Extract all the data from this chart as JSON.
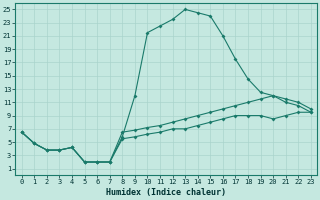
{
  "title": "",
  "xlabel": "Humidex (Indice chaleur)",
  "bg_color": "#c5e8e0",
  "grid_color": "#aad4cc",
  "line_color": "#1a7a6a",
  "xlim": [
    -0.5,
    23.5
  ],
  "ylim": [
    0,
    26
  ],
  "xticks": [
    0,
    1,
    2,
    3,
    4,
    5,
    6,
    7,
    8,
    9,
    10,
    11,
    12,
    13,
    14,
    15,
    16,
    17,
    18,
    19,
    20,
    21,
    22,
    23
  ],
  "yticks": [
    1,
    3,
    5,
    7,
    9,
    11,
    13,
    15,
    17,
    19,
    21,
    23,
    25
  ],
  "line1_x": [
    0,
    1,
    2,
    3,
    4,
    5,
    6,
    7,
    8,
    9,
    10,
    11,
    12,
    13,
    14,
    15,
    16,
    17,
    18,
    19,
    20,
    21,
    22,
    23
  ],
  "line1_y": [
    6.5,
    4.8,
    3.8,
    3.8,
    4.2,
    2.0,
    2.0,
    2.0,
    5.8,
    12.0,
    21.5,
    22.5,
    23.5,
    25.0,
    24.5,
    24.0,
    21.0,
    17.5,
    14.5,
    12.5,
    12.0,
    11.0,
    10.5,
    9.5
  ],
  "line2_x": [
    0,
    1,
    2,
    3,
    4,
    5,
    6,
    7,
    8,
    9,
    10,
    11,
    12,
    13,
    14,
    15,
    16,
    17,
    18,
    19,
    20,
    21,
    22,
    23
  ],
  "line2_y": [
    6.5,
    4.8,
    3.8,
    3.8,
    4.2,
    2.0,
    2.0,
    2.0,
    6.5,
    6.8,
    7.2,
    7.5,
    8.0,
    8.5,
    9.0,
    9.5,
    10.0,
    10.5,
    11.0,
    11.5,
    12.0,
    11.5,
    11.0,
    10.0
  ],
  "line3_x": [
    0,
    1,
    2,
    3,
    4,
    5,
    6,
    7,
    8,
    9,
    10,
    11,
    12,
    13,
    14,
    15,
    16,
    17,
    18,
    19,
    20,
    21,
    22,
    23
  ],
  "line3_y": [
    6.5,
    4.8,
    3.8,
    3.8,
    4.2,
    2.0,
    2.0,
    2.0,
    5.5,
    5.8,
    6.2,
    6.5,
    7.0,
    7.0,
    7.5,
    8.0,
    8.5,
    9.0,
    9.0,
    9.0,
    8.5,
    9.0,
    9.5,
    9.5
  ],
  "marker_size": 2.0,
  "line_width": 0.8,
  "tick_fontsize": 5.0,
  "xlabel_fontsize": 6.0
}
